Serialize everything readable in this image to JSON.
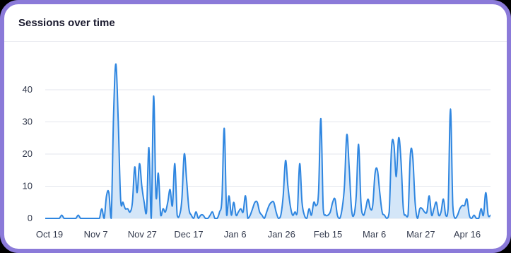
{
  "card": {
    "title": "Sessions over time"
  },
  "colors": {
    "line": "#2f86e0",
    "fill": "#cde2f7",
    "grid": "#e3e6ec",
    "frame": "#8b7ad9"
  },
  "chart_data": {
    "type": "area",
    "title": "Sessions over time",
    "xlabel": "",
    "ylabel": "",
    "ylim": [
      0,
      50
    ],
    "yticks": [
      0,
      10,
      20,
      30,
      40
    ],
    "grid": true,
    "x_tick_labels": [
      "Oct 19",
      "Nov 7",
      "Nov 27",
      "Dec 17",
      "Jan 6",
      "Jan 26",
      "Feb 15",
      "Mar 6",
      "Mar 27",
      "Apr 16"
    ],
    "start_date": "Oct 19",
    "values": [
      0,
      0,
      0,
      0,
      0,
      0,
      0,
      1,
      0,
      0,
      0,
      0,
      0,
      0,
      1,
      0,
      0,
      0,
      0,
      0,
      0,
      0,
      0,
      0,
      3,
      0,
      7,
      8,
      0,
      32,
      48,
      30,
      6,
      5,
      3,
      3,
      2,
      5,
      16,
      8,
      17,
      10,
      5,
      2,
      22,
      0,
      38,
      7,
      14,
      1,
      3,
      2,
      5,
      9,
      4,
      17,
      1,
      1,
      6,
      20,
      12,
      3,
      1,
      0,
      2,
      0,
      1,
      1,
      0,
      0,
      1,
      2,
      0,
      0,
      2,
      6,
      28,
      1,
      7,
      1,
      5,
      1,
      2,
      3,
      2,
      7,
      0,
      1,
      3,
      5,
      5,
      2,
      1,
      0,
      2,
      4,
      5,
      5,
      2,
      0,
      1,
      7,
      18,
      10,
      4,
      1,
      2,
      2,
      17,
      5,
      1,
      0,
      3,
      1,
      5,
      4,
      8,
      31,
      3,
      1,
      1,
      2,
      5,
      6,
      1,
      0,
      3,
      10,
      26,
      16,
      3,
      1,
      7,
      23,
      5,
      1,
      3,
      6,
      3,
      4,
      14,
      15,
      8,
      2,
      1,
      0,
      2,
      22,
      23,
      13,
      25,
      18,
      3,
      1,
      1,
      20,
      19,
      5,
      0,
      3,
      3,
      2,
      2,
      7,
      1,
      3,
      5,
      1,
      2,
      6,
      1,
      3,
      34,
      4,
      0,
      1,
      3,
      4,
      4,
      6,
      1,
      0,
      1,
      0,
      0,
      3,
      1,
      8,
      1,
      1
    ]
  }
}
